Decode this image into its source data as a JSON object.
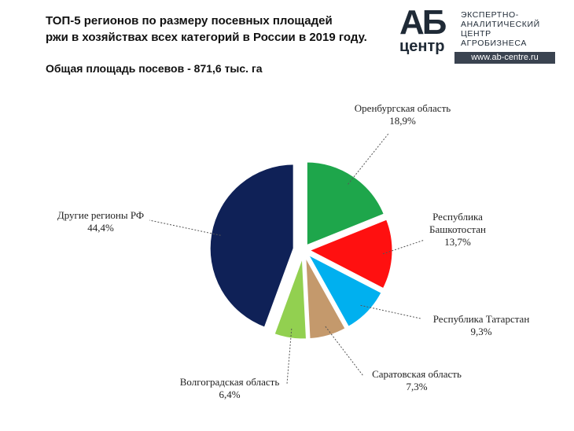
{
  "header": {
    "title_line1": "ТОП-5 регионов по размеру посевных площадей",
    "title_line2": "ржи в хозяйствах всех категорий в России в 2019 году.",
    "subtitle": "Общая площадь посевов - 871,6 тыс. га"
  },
  "logo": {
    "ab": "АБ",
    "center": "центр",
    "line1": "ЭКСПЕРТНО-",
    "line2": "АНАЛИТИЧЕСКИЙ",
    "line3": "ЦЕНТР",
    "line4": "АГРОБИЗНЕСА",
    "url": "www.ab-centre.ru"
  },
  "chart_data": {
    "type": "pie",
    "title": "ТОП-5 регионов по размеру посевных площадей ржи в хозяйствах всех категорий в России в 2019 году.",
    "slices": [
      {
        "label": [
          "Оренбургская область"
        ],
        "value": 18.9,
        "value_label": "18,9%",
        "color": "#1ea64b"
      },
      {
        "label": [
          "Республика",
          "Башкотостан"
        ],
        "value": 13.7,
        "value_label": "13,7%",
        "color": "#ff1010"
      },
      {
        "label": [
          "Республика Татарстан"
        ],
        "value": 9.3,
        "value_label": "9,3%",
        "color": "#00b0ef"
      },
      {
        "label": [
          "Саратовская область"
        ],
        "value": 7.3,
        "value_label": "7,3%",
        "color": "#c4996c"
      },
      {
        "label": [
          "Волгоградская область"
        ],
        "value": 6.4,
        "value_label": "6,4%",
        "color": "#92d050"
      },
      {
        "label": [
          "Другие регионы РФ"
        ],
        "value": 44.4,
        "value_label": "44,4%",
        "color": "#0f2157"
      }
    ]
  }
}
